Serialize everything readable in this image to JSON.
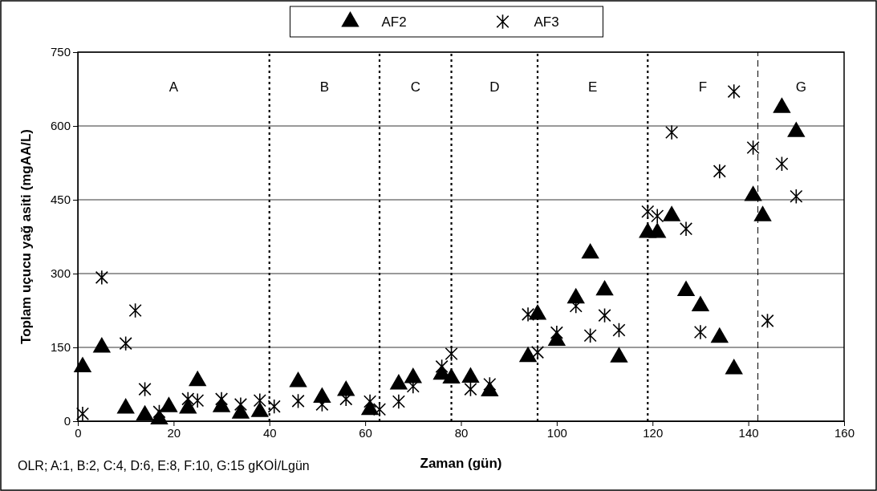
{
  "chart_data": {
    "type": "scatter",
    "xlabel": "Zaman (gün)",
    "ylabel": "Toplam uçucu yağ asiti (mgAA/L)",
    "xlim": [
      0,
      160
    ],
    "xticks": [
      0,
      20,
      40,
      60,
      80,
      100,
      120,
      140,
      160
    ],
    "ylim": [
      0,
      750
    ],
    "yticks": [
      0,
      150,
      300,
      450,
      600,
      750
    ],
    "grid": "y",
    "legend": "top",
    "series": [
      {
        "name": "AF2",
        "color": "#000000",
        "marker": "triangle",
        "x": [
          1,
          5,
          10,
          14,
          17,
          19,
          23,
          25,
          30,
          34,
          38,
          46,
          51,
          56,
          61,
          67,
          70,
          76,
          78,
          82,
          86,
          94,
          96,
          100,
          104,
          107,
          110,
          113,
          119,
          121,
          124,
          127,
          130,
          134,
          137,
          141,
          143,
          147,
          150
        ],
        "values": [
          110,
          150,
          26,
          12,
          4,
          29,
          26,
          82,
          29,
          16,
          19,
          80,
          48,
          62,
          23,
          75,
          88,
          95,
          87,
          89,
          61,
          131,
          217,
          164,
          250,
          341,
          266,
          130,
          383,
          383,
          417,
          265,
          234,
          170,
          106,
          458,
          417,
          637,
          588
        ]
      },
      {
        "name": "AF3",
        "color": "#000000",
        "marker": "cross",
        "x": [
          1,
          5,
          10,
          12,
          14,
          17,
          23,
          25,
          30,
          34,
          38,
          41,
          46,
          51,
          56,
          61,
          63,
          67,
          70,
          76,
          78,
          82,
          86,
          94,
          96,
          100,
          104,
          107,
          110,
          113,
          119,
          121,
          124,
          127,
          130,
          134,
          137,
          141,
          144,
          147,
          150
        ],
        "values": [
          15,
          292,
          158,
          225,
          65,
          19,
          45,
          42,
          45,
          34,
          42,
          30,
          41,
          34,
          45,
          40,
          24,
          40,
          71,
          111,
          137,
          65,
          75,
          217,
          140,
          180,
          234,
          174,
          215,
          185,
          426,
          417,
          587,
          391,
          181,
          508,
          670,
          556,
          204,
          523,
          457
        ]
      }
    ],
    "ref_lines": [
      {
        "axis": "x",
        "value": 40,
        "line_style": "dotted"
      },
      {
        "axis": "x",
        "value": 63,
        "line_style": "dotted"
      },
      {
        "axis": "x",
        "value": 78,
        "line_style": "dotted"
      },
      {
        "axis": "x",
        "value": 96,
        "line_style": "dotted"
      },
      {
        "axis": "x",
        "value": 119,
        "line_style": "dotted"
      },
      {
        "axis": "x",
        "value": 142,
        "line_style": "dashed"
      }
    ],
    "annotations": [
      "A",
      "B",
      "C",
      "D",
      "E",
      "F",
      "G",
      "OLR; A:1, B:2, C:4, D:6, E:8, F:10, G:15 gKOİ/Lgün"
    ]
  }
}
